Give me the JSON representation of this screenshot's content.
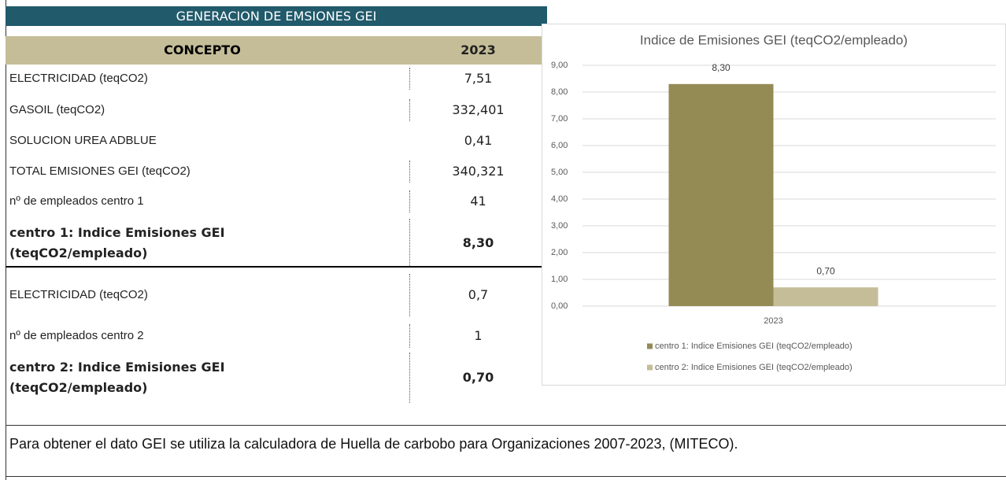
{
  "table": {
    "title": "GENERACION DE EMSIONES GEI",
    "header": [
      "CONCEPTO",
      "2023"
    ],
    "rows": [
      [
        "ELECTRICIDAD (teqCO2)",
        "7,51"
      ],
      [
        "GASOIL (teqCO2)",
        "332,401"
      ],
      [
        "SOLUCION UREA ADBLUE",
        "0,41"
      ],
      [
        "TOTAL EMISIONES GEI (teqCO2)",
        "340,321"
      ],
      [
        "nº de empleados centro 1",
        "41"
      ],
      [
        "centro 1: Indice Emisiones GEI (teqCO2/empleado)",
        "8,30"
      ],
      [
        "ELECTRICIDAD (teqCO2)",
        "0,7"
      ],
      [
        "nº de empleados centro 2",
        "1"
      ],
      [
        "centro 2: Indice Emisiones GEI (teqCO2/empleado)",
        "0,70"
      ]
    ]
  },
  "chart_data": {
    "type": "bar",
    "title": "Indice de Emisiones GEI (teqCO2/empleado)",
    "categories": [
      "2023"
    ],
    "series": [
      {
        "name": "centro 1: Indice Emisiones GEI (teqCO2/empleado)",
        "color": "#948a54",
        "values": [
          8.3
        ],
        "value_labels": [
          "8,30"
        ]
      },
      {
        "name": "centro 2: Indice Emisiones GEI (teqCO2/empleado)",
        "color": "#c4bd97",
        "values": [
          0.7
        ],
        "value_labels": [
          "0,70"
        ]
      }
    ],
    "ylim": [
      0,
      9
    ],
    "yticks": [
      {
        "value": 0,
        "label": "0,00"
      },
      {
        "value": 1,
        "label": "1,00"
      },
      {
        "value": 2,
        "label": "2,00"
      },
      {
        "value": 3,
        "label": "3,00"
      },
      {
        "value": 4,
        "label": "4,00"
      },
      {
        "value": 5,
        "label": "5,00"
      },
      {
        "value": 6,
        "label": "6,00"
      },
      {
        "value": 7,
        "label": "7,00"
      },
      {
        "value": 8,
        "label": "8,00"
      },
      {
        "value": 9,
        "label": "9,00"
      }
    ],
    "grid": true,
    "legend": "bottom"
  },
  "footer": "Para obtener el dato GEI se utiliza la calculadora de Huella de carbobo para Organizaciones 2007-2023, (MITECO)."
}
